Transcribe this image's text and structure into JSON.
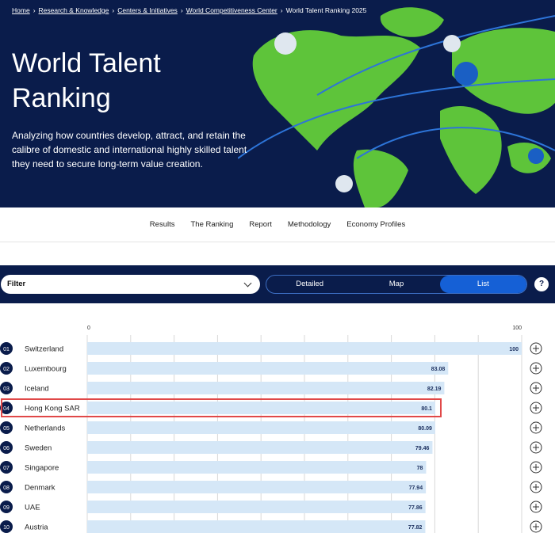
{
  "breadcrumb": [
    "Home",
    "Research & Knowledge",
    "Centers & Initiatives",
    "World Competitiveness Center",
    "World Talent Ranking 2025"
  ],
  "hero": {
    "title": "World Talent Ranking",
    "description": "Analyzing how countries develop, attract, and retain the calibre of domestic and international highly skilled talent they need to secure long-term value creation."
  },
  "tabs": [
    "Results",
    "The Ranking",
    "Report",
    "Methodology",
    "Economy Profiles"
  ],
  "toolbar": {
    "filter": "Filter",
    "views": [
      "Detailed",
      "Map",
      "List"
    ],
    "help": "?"
  },
  "chart_data": {
    "type": "bar",
    "orientation": "horizontal",
    "ranks": [
      "01",
      "02",
      "03",
      "04",
      "05",
      "06",
      "07",
      "08",
      "09",
      "10"
    ],
    "categories": [
      "Switzerland",
      "Luxembourg",
      "Iceland",
      "Hong Kong SAR",
      "Netherlands",
      "Sweden",
      "Singapore",
      "Denmark",
      "UAE",
      "Austria"
    ],
    "values": [
      100,
      83.08,
      82.19,
      80.1,
      80.09,
      79.46,
      78,
      77.94,
      77.86,
      77.82
    ],
    "color": "#d5e7f7",
    "xlim": [
      0,
      100
    ],
    "xticks": [
      0,
      100
    ],
    "grid": true,
    "grid_lines": [
      10,
      20,
      30,
      40,
      50,
      60,
      70,
      80,
      90
    ],
    "highlight_index": 3
  }
}
